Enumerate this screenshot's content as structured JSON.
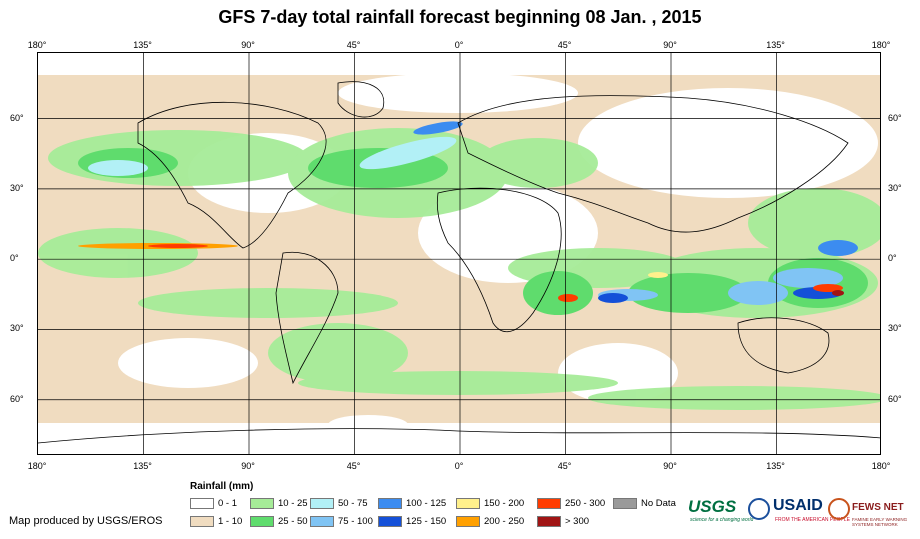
{
  "title": "GFS 7-day total rainfall forecast beginning 08 Jan. , 2015",
  "lon_ticks": [
    {
      "label": "180°",
      "lon": -180
    },
    {
      "label": "135°",
      "lon": -135
    },
    {
      "label": "90°",
      "lon": -90
    },
    {
      "label": "45°",
      "lon": -45
    },
    {
      "label": "0°",
      "lon": 0
    },
    {
      "label": "45°",
      "lon": 45
    },
    {
      "label": "90°",
      "lon": 90
    },
    {
      "label": "135°",
      "lon": 135
    },
    {
      "label": "180°",
      "lon": 180
    }
  ],
  "lat_ticks": [
    {
      "label": "60°",
      "lat": 60
    },
    {
      "label": "30°",
      "lat": 30
    },
    {
      "label": "0°",
      "lat": 0
    },
    {
      "label": "30°",
      "lat": -30
    },
    {
      "label": "60°",
      "lat": -60
    }
  ],
  "map_extent": {
    "lon": [
      -180,
      180
    ],
    "lat": [
      -84,
      88
    ]
  },
  "legend": {
    "title": "Rainfall (mm)",
    "classes": [
      {
        "label": "0 - 1",
        "color": "#ffffff"
      },
      {
        "label": "1 - 10",
        "color": "#f0dcc0"
      },
      {
        "label": "10 - 25",
        "color": "#a6ec98"
      },
      {
        "label": "25 - 50",
        "color": "#5fdc6d"
      },
      {
        "label": "50 - 75",
        "color": "#b2f0f6"
      },
      {
        "label": "75 - 100",
        "color": "#80c4f4"
      },
      {
        "label": "100 - 125",
        "color": "#3c8cf0"
      },
      {
        "label": "125 - 150",
        "color": "#1450d8"
      },
      {
        "label": "150 - 200",
        "color": "#fff08c"
      },
      {
        "label": "200 - 250",
        "color": "#ffa000"
      },
      {
        "label": "250 - 300",
        "color": "#ff3c00"
      },
      {
        "label": "> 300",
        "color": "#a01414"
      },
      {
        "label": "No Data",
        "color": "#9a9a9a"
      }
    ]
  },
  "credit": "Map produced by USGS/EROS",
  "logos": {
    "usgs": "USGS",
    "usgs_tagline": "science for a changing world",
    "usaid": "USAID",
    "usaid_tagline": "FROM THE AMERICAN PEOPLE",
    "fews": "FEWS NET",
    "fews_tagline": "FAMINE EARLY WARNING SYSTEMS NETWORK"
  }
}
